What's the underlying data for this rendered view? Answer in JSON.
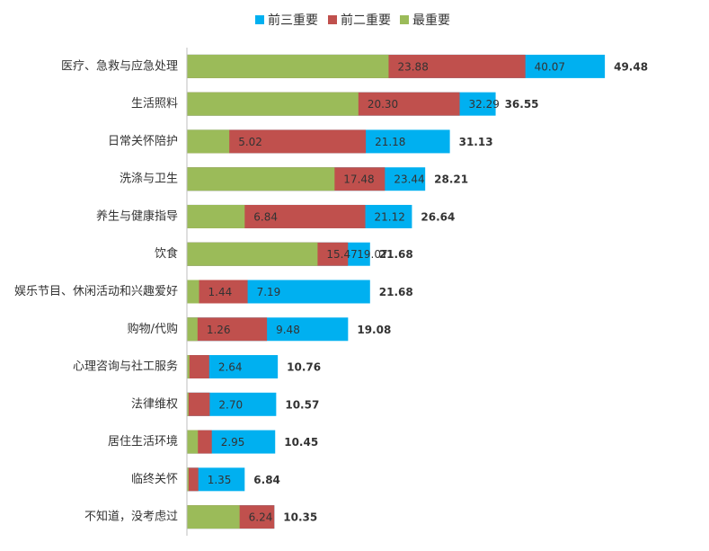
{
  "chart_data": {
    "type": "bar",
    "orientation": "horizontal",
    "categories": [
      "医疗、急救与应急处理",
      "生活照料",
      "日常关怀陪护",
      "洗涤与卫生",
      "养生与健康指导",
      "饮食",
      "娱乐节目、休闲活动和兴趣爱好",
      "购物/代购",
      "心理咨询与社工服务",
      "法律维权",
      "居住生活环境",
      "临终关怀",
      "不知道，没考虑过"
    ],
    "series": [
      {
        "name": "前三重要",
        "color": "#00b0f0",
        "values": [
          49.48,
          36.55,
          31.13,
          28.21,
          26.64,
          21.68,
          21.68,
          19.08,
          10.76,
          10.57,
          10.45,
          6.84,
          10.35
        ],
        "value_labels": [
          "49.48",
          "36.55",
          "31.13",
          "28.21",
          "26.64",
          "21.68",
          "21.68",
          "19.08",
          "10.76",
          "10.57",
          "10.45",
          "6.84",
          "10.35"
        ]
      },
      {
        "name": "前二重要",
        "color": "#c0504d",
        "values": [
          40.07,
          32.29,
          21.18,
          23.44,
          21.12,
          19.07,
          7.19,
          9.48,
          2.64,
          2.7,
          2.95,
          1.35,
          10.35
        ],
        "value_labels": [
          "40.07",
          "32.29",
          "21.18",
          "23.44",
          "21.12",
          "19.07",
          "7.19",
          "9.48",
          "2.64",
          "2.70",
          "2.95",
          "1.35",
          null
        ]
      },
      {
        "name": "最重要",
        "color": "#9bbb59",
        "values": [
          23.88,
          20.3,
          5.02,
          17.48,
          6.84,
          15.47,
          1.44,
          1.26,
          0.3,
          0.2,
          1.3,
          0.2,
          6.24
        ],
        "value_labels": [
          "23.88",
          "20.30",
          "5.02",
          "17.48",
          "6.84",
          "15.47",
          "1.44",
          "1.26",
          null,
          null,
          null,
          null,
          "6.24"
        ]
      }
    ],
    "xlim": [
      0,
      60
    ],
    "legend": "top"
  }
}
